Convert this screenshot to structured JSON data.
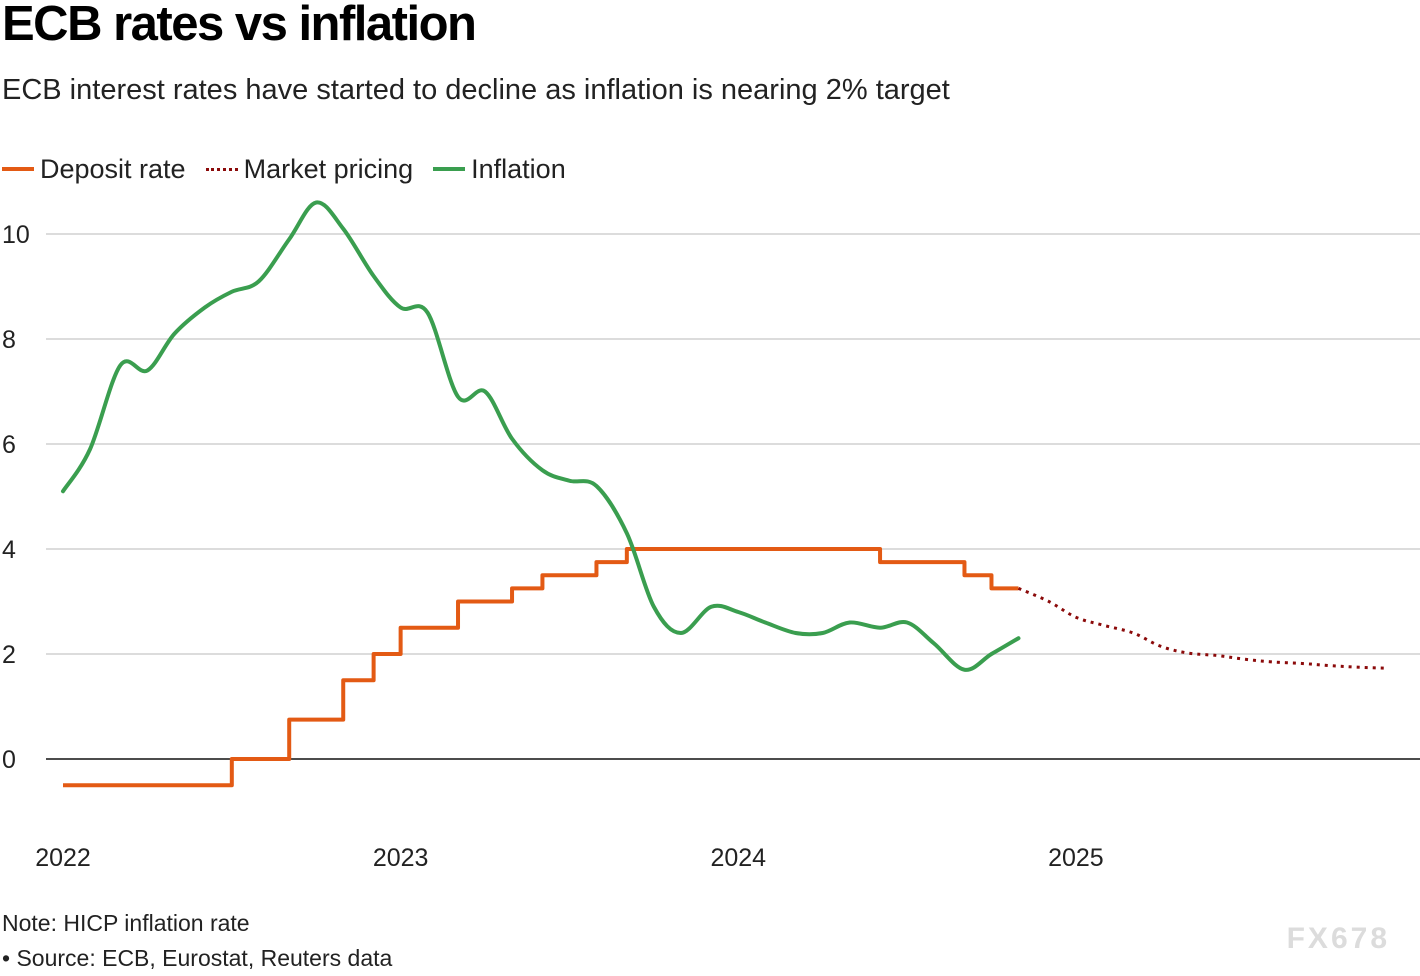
{
  "title": "ECB rates vs inflation",
  "subtitle": "ECB interest rates have started to decline as inflation is nearing 2% target",
  "legend": [
    {
      "label": "Deposit rate",
      "color": "#e35a14",
      "style": "solid"
    },
    {
      "label": "Market pricing",
      "color": "#8b0a0a",
      "style": "dotted"
    },
    {
      "label": "Inflation",
      "color": "#3a9e4f",
      "style": "solid"
    }
  ],
  "notes": {
    "note": "Note: HICP inflation rate",
    "source": "• Source: ECB, Eurostat, Reuters data"
  },
  "watermark": "FX678",
  "chart_data": {
    "type": "line",
    "title": "ECB rates vs inflation",
    "subtitle": "ECB interest rates have started to decline as inflation is nearing 2% target",
    "xlabel": "",
    "ylabel": "",
    "xlim": [
      2022.0,
      2025.96
    ],
    "ylim": [
      -1.2,
      10.8
    ],
    "xticks": [
      2022,
      2023,
      2024,
      2025
    ],
    "xtick_labels": [
      "2022",
      "2023",
      "2024",
      "2025"
    ],
    "yticks": [
      0,
      2,
      4,
      6,
      8,
      10
    ],
    "ytick_labels": [
      "0",
      "2",
      "4",
      "6",
      "8",
      "10"
    ],
    "grid": "horizontal",
    "legend_position": "top-left",
    "series": [
      {
        "name": "Deposit rate",
        "color": "#e35a14",
        "style": "step",
        "points": [
          [
            2022.0,
            -0.5
          ],
          [
            2022.5,
            -0.5
          ],
          [
            2022.5,
            0.0
          ],
          [
            2022.67,
            0.0
          ],
          [
            2022.67,
            0.75
          ],
          [
            2022.83,
            0.75
          ],
          [
            2022.83,
            1.5
          ],
          [
            2022.92,
            1.5
          ],
          [
            2022.92,
            2.0
          ],
          [
            2023.0,
            2.0
          ],
          [
            2023.0,
            2.5
          ],
          [
            2023.17,
            2.5
          ],
          [
            2023.17,
            3.0
          ],
          [
            2023.33,
            3.0
          ],
          [
            2023.33,
            3.25
          ],
          [
            2023.42,
            3.25
          ],
          [
            2023.42,
            3.5
          ],
          [
            2023.58,
            3.5
          ],
          [
            2023.58,
            3.75
          ],
          [
            2023.67,
            3.75
          ],
          [
            2023.67,
            4.0
          ],
          [
            2024.42,
            4.0
          ],
          [
            2024.42,
            3.75
          ],
          [
            2024.67,
            3.75
          ],
          [
            2024.67,
            3.5
          ],
          [
            2024.75,
            3.5
          ],
          [
            2024.75,
            3.25
          ],
          [
            2024.83,
            3.25
          ]
        ]
      },
      {
        "name": "Market pricing",
        "color": "#8b0a0a",
        "style": "dotted",
        "points": [
          [
            2024.83,
            3.25
          ],
          [
            2024.92,
            3.0
          ],
          [
            2025.0,
            2.7
          ],
          [
            2025.08,
            2.55
          ],
          [
            2025.17,
            2.4
          ],
          [
            2025.25,
            2.15
          ],
          [
            2025.33,
            2.02
          ],
          [
            2025.42,
            1.97
          ],
          [
            2025.5,
            1.9
          ],
          [
            2025.58,
            1.85
          ],
          [
            2025.67,
            1.82
          ],
          [
            2025.75,
            1.78
          ],
          [
            2025.83,
            1.75
          ],
          [
            2025.92,
            1.73
          ]
        ]
      },
      {
        "name": "Inflation",
        "color": "#3a9e4f",
        "style": "smooth",
        "points": [
          [
            2022.0,
            5.1
          ],
          [
            2022.08,
            5.9
          ],
          [
            2022.17,
            7.5
          ],
          [
            2022.25,
            7.4
          ],
          [
            2022.33,
            8.1
          ],
          [
            2022.42,
            8.6
          ],
          [
            2022.5,
            8.9
          ],
          [
            2022.58,
            9.1
          ],
          [
            2022.67,
            9.9
          ],
          [
            2022.75,
            10.6
          ],
          [
            2022.83,
            10.1
          ],
          [
            2022.92,
            9.2
          ],
          [
            2023.0,
            8.6
          ],
          [
            2023.08,
            8.5
          ],
          [
            2023.17,
            6.9
          ],
          [
            2023.25,
            7.0
          ],
          [
            2023.33,
            6.1
          ],
          [
            2023.42,
            5.5
          ],
          [
            2023.5,
            5.3
          ],
          [
            2023.58,
            5.2
          ],
          [
            2023.67,
            4.3
          ],
          [
            2023.75,
            2.9
          ],
          [
            2023.83,
            2.4
          ],
          [
            2023.92,
            2.9
          ],
          [
            2024.0,
            2.8
          ],
          [
            2024.08,
            2.6
          ],
          [
            2024.17,
            2.4
          ],
          [
            2024.25,
            2.4
          ],
          [
            2024.33,
            2.6
          ],
          [
            2024.42,
            2.5
          ],
          [
            2024.5,
            2.6
          ],
          [
            2024.58,
            2.2
          ],
          [
            2024.67,
            1.7
          ],
          [
            2024.75,
            2.0
          ],
          [
            2024.83,
            2.3
          ]
        ]
      }
    ]
  }
}
